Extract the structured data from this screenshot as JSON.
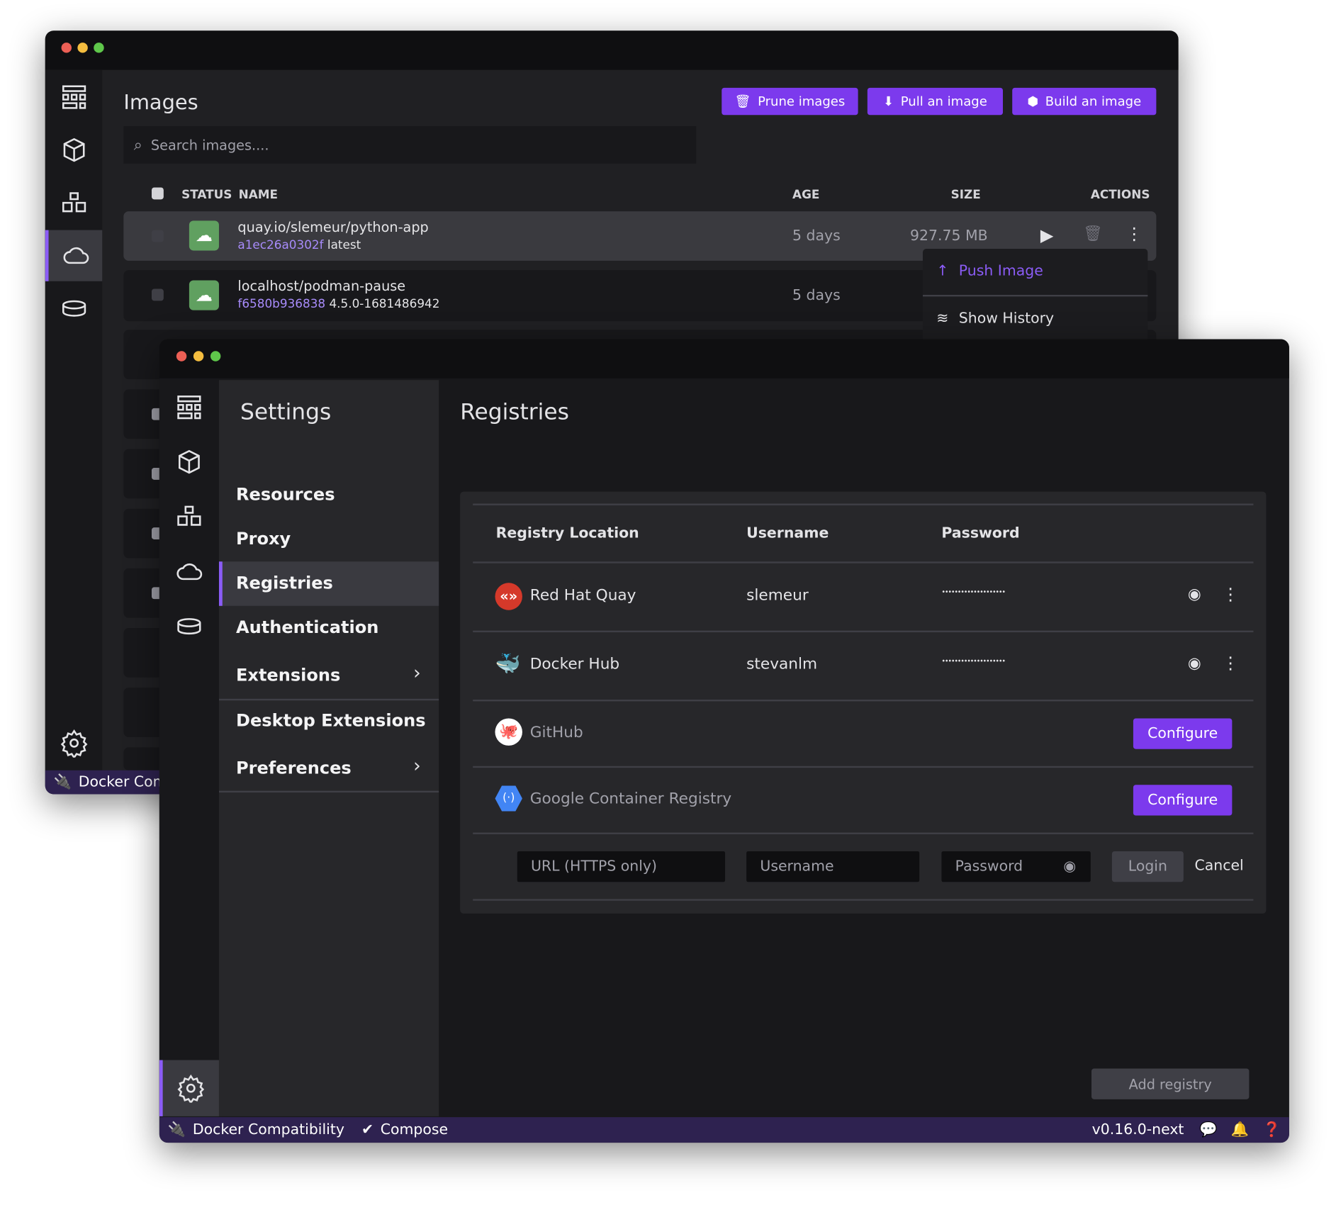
{
  "images_window": {
    "title": "Images",
    "buttons": {
      "prune": "Prune images",
      "pull": "Pull an image",
      "build": "Build an image"
    },
    "search_placeholder": "Search images....",
    "columns": {
      "status": "STATUS",
      "name": "NAME",
      "age": "AGE",
      "size": "SIZE",
      "actions": "ACTIONS"
    },
    "rows": [
      {
        "name": "quay.io/slemeur/python-app",
        "id": "a1ec26a0302f",
        "tag": "latest",
        "age": "5 days",
        "size": "927.75 MB"
      },
      {
        "name": "localhost/podman-pause",
        "id": "f6580b936838",
        "tag": "4.5.0-1681486942",
        "age": "5 days"
      }
    ],
    "context_menu": [
      {
        "label": "Push Image",
        "icon": "arrow-up-icon"
      },
      {
        "label": "Show History",
        "icon": "layers-icon"
      }
    ],
    "status_bar": {
      "docker": "Docker Comp"
    }
  },
  "settings_window": {
    "title": "Settings",
    "menu": [
      "Resources",
      "Proxy",
      "Registries",
      "Authentication",
      "Extensions",
      "Desktop Extensions",
      "Preferences"
    ],
    "active": "Registries",
    "page_title": "Registries",
    "table": {
      "headers": {
        "location": "Registry Location",
        "username": "Username",
        "password": "Password"
      },
      "rows": [
        {
          "name": "Red Hat Quay",
          "username": "slemeur",
          "password": "••••••••••••••••••••"
        },
        {
          "name": "Docker Hub",
          "username": "stevanlm",
          "password": "••••••••••••••••••••"
        },
        {
          "name": "GitHub",
          "action": "Configure"
        },
        {
          "name": "Google Container Registry",
          "action": "Configure"
        }
      ],
      "new_entry": {
        "url_placeholder": "URL (HTTPS only)",
        "username_placeholder": "Username",
        "password_placeholder": "Password",
        "login": "Login",
        "cancel": "Cancel"
      }
    },
    "add_registry": "Add registry",
    "status_bar": {
      "docker": "Docker Compatibility",
      "compose": "Compose",
      "version": "v0.16.0-next"
    }
  },
  "colors": {
    "accent": "#7c3aed",
    "status_bar": "#2e2250",
    "image_ok": "#60a060"
  }
}
